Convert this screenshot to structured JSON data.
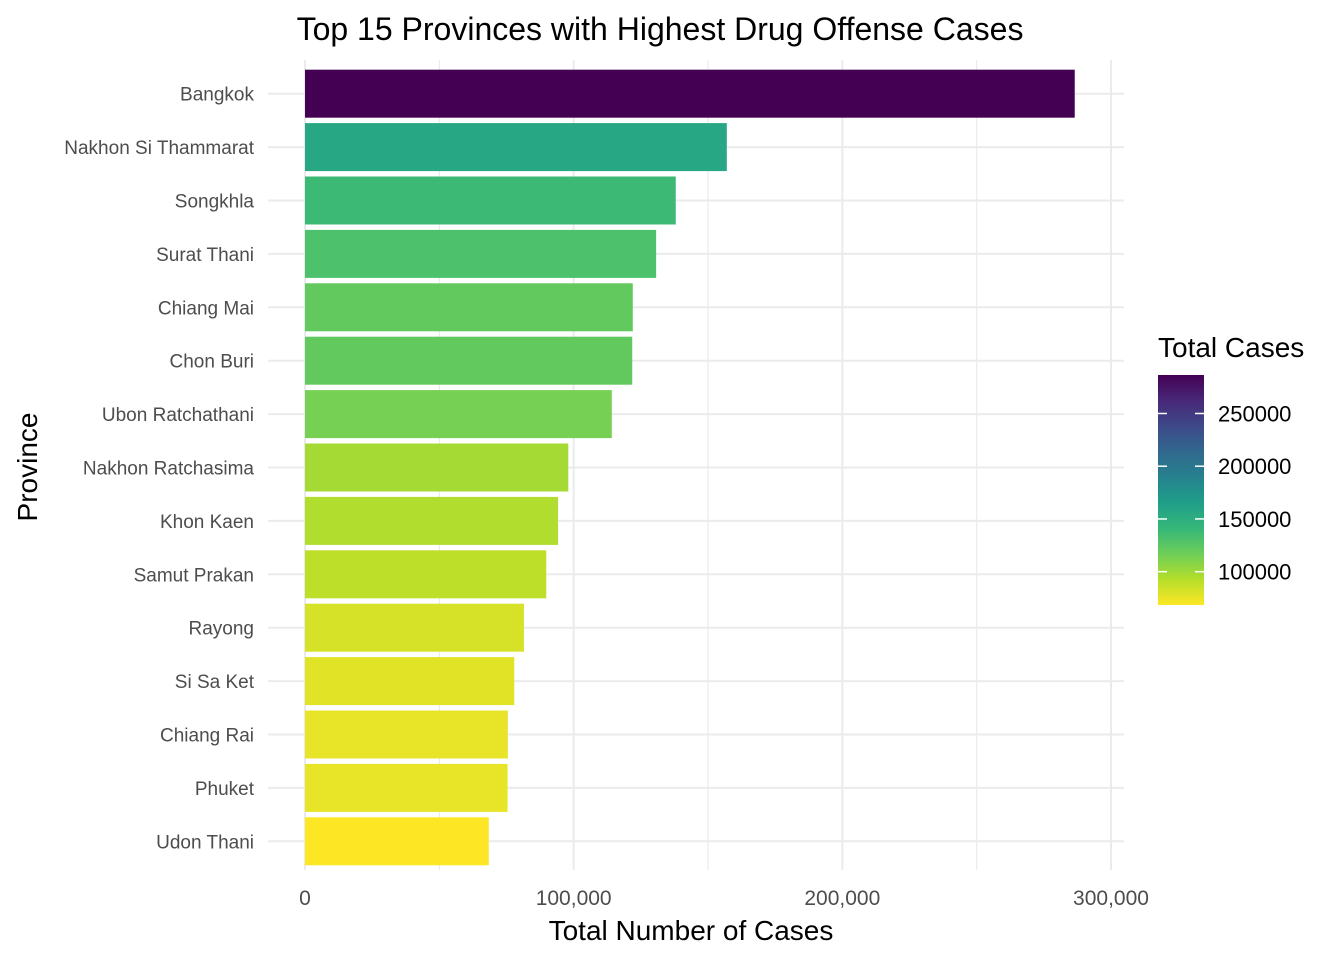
{
  "chart_data": {
    "type": "bar",
    "orientation": "horizontal",
    "title": "Top 15 Provinces with Highest Drug Offense Cases",
    "xlabel": "Total Number of Cases",
    "ylabel": "Province",
    "xlim": [
      0,
      300000
    ],
    "x_ticks": [
      "0",
      "100,000",
      "200,000",
      "300,000"
    ],
    "x_tick_values": [
      0,
      100000,
      200000,
      300000
    ],
    "grid": true,
    "categories": [
      "Bangkok",
      "Nakhon Si Thammarat",
      "Songkhla",
      "Surat Thani",
      "Chiang Mai",
      "Chon Buri",
      "Ubon Ratchathani",
      "Nakhon Ratchasima",
      "Khon Kaen",
      "Samut Prakan",
      "Rayong",
      "Si Sa Ket",
      "Chiang Rai",
      "Phuket",
      "Udon Thani"
    ],
    "values": [
      286500,
      157000,
      138000,
      130700,
      122000,
      121800,
      114200,
      98000,
      94200,
      89800,
      81500,
      77900,
      75500,
      75400,
      68400
    ],
    "legend": {
      "title": "Total Cases",
      "position": "right",
      "type": "colorbar",
      "palette": "viridis",
      "range": [
        68400,
        286500
      ],
      "ticks": [
        "250000",
        "200000",
        "150000",
        "100000"
      ],
      "tick_values": [
        250000,
        200000,
        150000,
        100000
      ]
    }
  }
}
